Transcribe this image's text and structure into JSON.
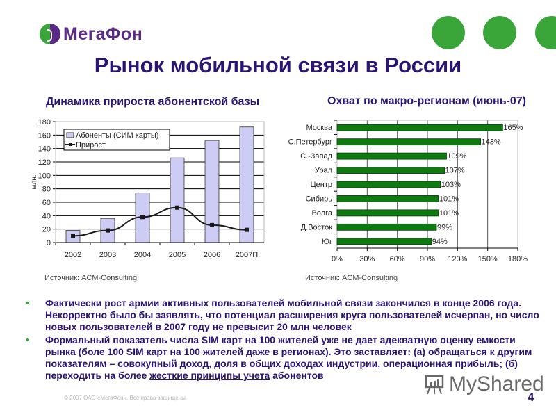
{
  "brand": {
    "name": "МегаФон",
    "logo_icon": "megafon-logo-icon",
    "colors": {
      "purple": "#5b2a86",
      "green": "#3aa63a",
      "title": "#2b1473"
    }
  },
  "decor": {
    "dots": 3
  },
  "title": "Рынок мобильной связи в России",
  "left_panel": {
    "subtitle": "Динамика прироста абонентской базы",
    "source": "Источник: ACM-Consulting"
  },
  "right_panel": {
    "subtitle": "Охват по макро-регионам (июнь-07)",
    "source": "Источник: ACM-Consulting"
  },
  "bullets": [
    {
      "parts": [
        {
          "text": "Фактически рост армии активных пользователей мобильной связи закончился в конце 2006 года. Некорректно было бы заявлять, что потенциал расширения круга пользователей исчерпан, но число новых пользователей в 2007 году не превысит 20 млн человек",
          "u": false
        }
      ]
    },
    {
      "parts": [
        {
          "text": "Формальный показатель числа SIM карт на 100 жителей уже не дает адекватную оценку емкости рынка (боле 100 SIM карт на 100 жителей даже в регионах). Это заставляет: (а) обращаться к другим показателям – ",
          "u": false
        },
        {
          "text": "совокупный доход, доля в общих доходах индустрии",
          "u": true
        },
        {
          "text": ", операционная прибыль; (б) переходить на более ",
          "u": false
        },
        {
          "text": "жесткие принципы учета",
          "u": true
        },
        {
          "text": " абонентов",
          "u": false
        }
      ]
    }
  ],
  "footer": {
    "copyright": "© 2007 ОАО «МегаФон». Все права защищены.",
    "page_number": "4",
    "watermark": "MyShared"
  },
  "chart_data": [
    {
      "type": "bar+line",
      "title": "Динамика прироста абонентской базы",
      "xlabel": "",
      "ylabel": "млн.",
      "ylim": [
        0,
        180
      ],
      "yticks": [
        0,
        20,
        40,
        60,
        80,
        100,
        120,
        140,
        160,
        180
      ],
      "grid": true,
      "legend_position": "top-left inside",
      "categories": [
        "2002",
        "2003",
        "2004",
        "2005",
        "2006",
        "2007П"
      ],
      "series": [
        {
          "name": "Абоненты (СИМ карты)",
          "type": "bar",
          "color": "#ccccf5",
          "values": [
            18,
            36,
            74,
            126,
            152,
            172
          ]
        },
        {
          "name": "Прирост",
          "type": "line",
          "color": "#1a1a1a",
          "values": [
            10,
            18,
            38,
            52,
            26,
            19
          ]
        }
      ]
    },
    {
      "type": "bar",
      "orientation": "horizontal",
      "title": "Охват по макро-регионам (июнь-07)",
      "xlabel": "",
      "ylabel": "",
      "xlim": [
        0,
        180
      ],
      "xticks": [
        "0%",
        "30%",
        "60%",
        "90%",
        "120%",
        "150%",
        "180%"
      ],
      "grid": true,
      "categories": [
        "Москва",
        "С.Петербург",
        "С.-Запад",
        "Урал",
        "Центр",
        "Сибирь",
        "Волга",
        "Д.Восток",
        "Юг"
      ],
      "values": [
        165,
        143,
        109,
        107,
        103,
        101,
        101,
        99,
        94
      ],
      "labels": [
        "165%",
        "143%",
        "109%",
        "107%",
        "103%",
        "101%",
        "101%",
        "99%",
        "94%"
      ],
      "color": "#0f7a10"
    }
  ]
}
